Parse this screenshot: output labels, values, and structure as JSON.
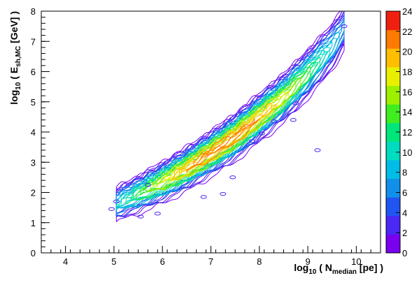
{
  "chart_data": {
    "type": "contour",
    "xlabel": {
      "prefix": "log",
      "base": "10",
      "mid": " ( N",
      "sub": "median",
      "suffix": " [pe] )"
    },
    "ylabel": {
      "prefix": "log",
      "base": "10",
      "mid": " ( E",
      "sub": "sh,MC",
      "suffix": " [GeV] )"
    },
    "xlim": [
      3.5,
      10.5
    ],
    "ylim": [
      0,
      8
    ],
    "x_ticks": [
      "4",
      "5",
      "6",
      "7",
      "8",
      "9",
      "10"
    ],
    "y_ticks": [
      "0",
      "1",
      "2",
      "3",
      "4",
      "5",
      "6",
      "7",
      "8"
    ],
    "colorbar": {
      "zlim": [
        0,
        24
      ],
      "ticks": [
        "0",
        "2",
        "4",
        "6",
        "8",
        "10",
        "12",
        "14",
        "16",
        "18",
        "20",
        "22",
        "24"
      ],
      "colors": [
        "#7a00f0",
        "#4a28f5",
        "#2055f2",
        "#1090ea",
        "#00bde6",
        "#00dcc0",
        "#00e67a",
        "#40ee20",
        "#9cf000",
        "#e8f000",
        "#ffbe00",
        "#ff7a00",
        "#f02010"
      ]
    },
    "ridge": {
      "x": [
        5.0,
        5.5,
        6.0,
        6.5,
        7.0,
        7.5,
        8.0,
        8.5,
        9.0,
        9.5,
        9.8
      ],
      "y": [
        1.6,
        1.95,
        2.35,
        2.8,
        3.3,
        3.85,
        4.5,
        5.15,
        5.95,
        6.85,
        7.6
      ]
    },
    "scatter_x_spread": 0.35,
    "scatter_y_spread": 0.45,
    "outliers": [
      {
        "x": 9.2,
        "y": 3.4
      },
      {
        "x": 9.75,
        "y": 7.5
      },
      {
        "x": 8.75,
        "y": 4.95
      },
      {
        "x": 8.3,
        "y": 4.35
      },
      {
        "x": 8.7,
        "y": 4.4
      },
      {
        "x": 7.85,
        "y": 3.7
      },
      {
        "x": 4.95,
        "y": 1.45
      },
      {
        "x": 5.55,
        "y": 1.2
      },
      {
        "x": 5.9,
        "y": 1.3
      },
      {
        "x": 6.85,
        "y": 1.85
      },
      {
        "x": 7.25,
        "y": 1.95
      },
      {
        "x": 7.45,
        "y": 2.5
      },
      {
        "x": 5.7,
        "y": 2.25
      },
      {
        "x": 5.05,
        "y": 1.7
      },
      {
        "x": 8.05,
        "y": 3.95
      }
    ]
  }
}
